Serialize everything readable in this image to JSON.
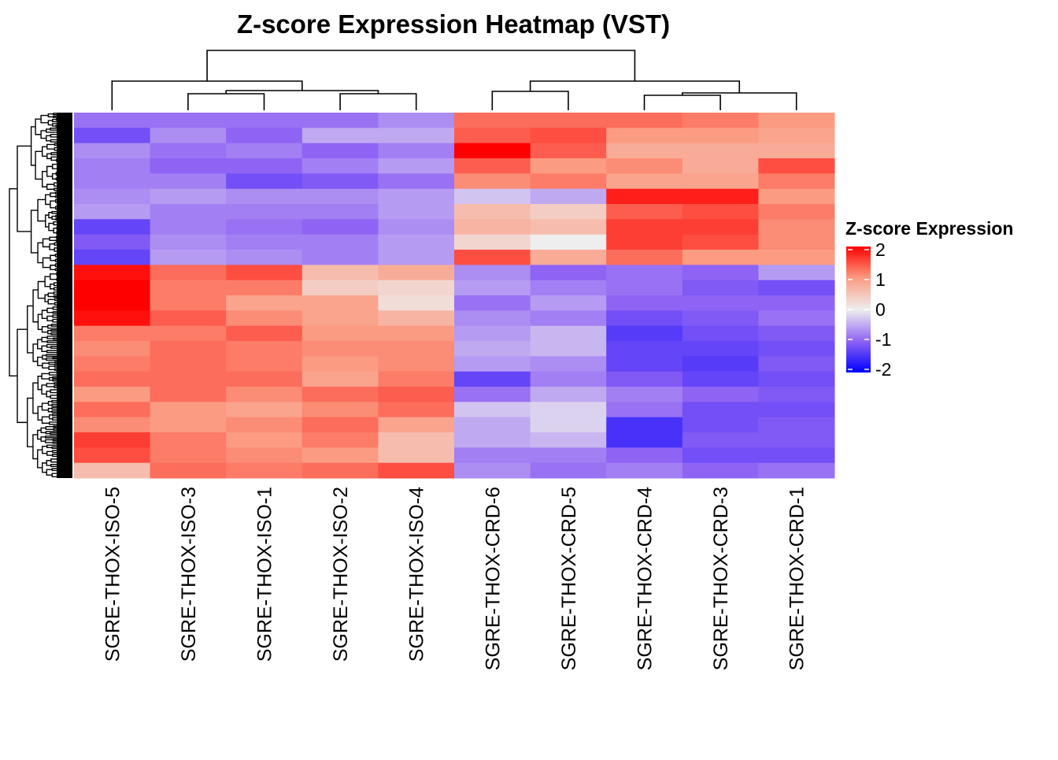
{
  "chart_data": {
    "type": "heatmap",
    "title": "Z-score Expression Heatmap (VST)",
    "columns": [
      "SGRE-THOX-ISO-5",
      "SGRE-THOX-ISO-3",
      "SGRE-THOX-ISO-1",
      "SGRE-THOX-ISO-2",
      "SGRE-THOX-ISO-4",
      "SGRE-THOX-CRD-6",
      "SGRE-THOX-CRD-5",
      "SGRE-THOX-CRD-4",
      "SGRE-THOX-CRD-3",
      "SGRE-THOX-CRD-1"
    ],
    "row_labels_shown": false,
    "row_dendrogram": true,
    "column_dendrogram": {
      "merges": [
        {
          "left": [
            "SGRE-THOX-ISO-3"
          ],
          "right": [
            "SGRE-THOX-ISO-1"
          ],
          "height": 21
        },
        {
          "left": [
            "SGRE-THOX-ISO-2"
          ],
          "right": [
            "SGRE-THOX-ISO-4"
          ],
          "height": 21
        },
        {
          "left": [
            "SGRE-THOX-ISO-3",
            "SGRE-THOX-ISO-1"
          ],
          "right": [
            "SGRE-THOX-ISO-2",
            "SGRE-THOX-ISO-4"
          ],
          "height": 25
        },
        {
          "left": [
            "SGRE-THOX-ISO-5"
          ],
          "right": [
            "SGRE-THOX-ISO-3",
            "SGRE-THOX-ISO-1",
            "SGRE-THOX-ISO-2",
            "SGRE-THOX-ISO-4"
          ],
          "height": 37
        },
        {
          "left": [
            "SGRE-THOX-CRD-6"
          ],
          "right": [
            "SGRE-THOX-CRD-5"
          ],
          "height": 24
        },
        {
          "left": [
            "SGRE-THOX-CRD-4"
          ],
          "right": [
            "SGRE-THOX-CRD-3"
          ],
          "height": 19
        },
        {
          "left": [
            "SGRE-THOX-CRD-4",
            "SGRE-THOX-CRD-3"
          ],
          "right": [
            "SGRE-THOX-CRD-1"
          ],
          "height": 22
        },
        {
          "left": [
            "SGRE-THOX-CRD-6",
            "SGRE-THOX-CRD-5"
          ],
          "right": [
            "SGRE-THOX-CRD-4",
            "SGRE-THOX-CRD-3",
            "SGRE-THOX-CRD-1"
          ],
          "height": 37
        },
        {
          "left": [
            "SGRE-THOX-ISO-5",
            "SGRE-THOX-ISO-3",
            "SGRE-THOX-ISO-1",
            "SGRE-THOX-ISO-2",
            "SGRE-THOX-ISO-4"
          ],
          "right": [
            "SGRE-THOX-CRD-6",
            "SGRE-THOX-CRD-5",
            "SGRE-THOX-CRD-4",
            "SGRE-THOX-CRD-3",
            "SGRE-THOX-CRD-1"
          ],
          "height": 76
        }
      ]
    },
    "values_by_column": [
      [
        -0.9,
        -1.2,
        -0.7,
        -0.8,
        -0.8,
        -0.7,
        -0.6,
        -1.3,
        -1.1,
        -1.3,
        1.9,
        2.0,
        2.0,
        1.9,
        1.2,
        1.1,
        1.2,
        1.3,
        1.0,
        1.3,
        1.1,
        1.6,
        1.5,
        0.6
      ],
      [
        -0.9,
        -0.7,
        -0.9,
        -1.0,
        -0.8,
        -0.6,
        -0.8,
        -0.8,
        -0.7,
        -0.6,
        1.3,
        1.2,
        1.2,
        1.4,
        1.2,
        1.3,
        1.3,
        1.3,
        1.3,
        1.0,
        1.0,
        1.2,
        1.2,
        1.3
      ],
      [
        -0.9,
        -1.0,
        -0.8,
        -1.0,
        -1.2,
        -0.7,
        -0.8,
        -0.9,
        -0.8,
        -0.7,
        1.5,
        1.2,
        0.9,
        1.1,
        1.4,
        1.2,
        1.2,
        1.3,
        1.1,
        0.9,
        1.1,
        1.0,
        1.1,
        1.2
      ],
      [
        -0.9,
        -0.5,
        -1.0,
        -0.8,
        -1.1,
        -0.7,
        -0.8,
        -1.0,
        -0.8,
        -0.8,
        0.6,
        0.4,
        0.9,
        0.9,
        1.0,
        1.1,
        1.0,
        0.9,
        1.3,
        1.1,
        1.3,
        1.2,
        1.0,
        1.3
      ],
      [
        -0.7,
        -0.5,
        -0.8,
        -0.6,
        -0.9,
        -0.6,
        -0.6,
        -0.7,
        -0.6,
        -0.6,
        0.8,
        0.3,
        0.2,
        0.7,
        1.0,
        1.1,
        1.1,
        1.2,
        1.4,
        1.3,
        0.9,
        0.6,
        0.6,
        1.5
      ],
      [
        1.3,
        1.4,
        2.0,
        1.4,
        1.1,
        -0.3,
        0.6,
        0.7,
        0.3,
        1.5,
        -0.7,
        -0.6,
        -0.9,
        -0.7,
        -0.6,
        -0.5,
        -0.6,
        -1.3,
        -0.9,
        -0.3,
        -0.5,
        -0.5,
        -0.8,
        -0.7
      ],
      [
        1.3,
        1.5,
        1.4,
        1.0,
        1.2,
        -0.5,
        0.4,
        0.6,
        0.0,
        0.8,
        -1.0,
        -0.8,
        -0.6,
        -0.8,
        -0.4,
        -0.4,
        -0.7,
        -0.8,
        -0.5,
        -0.2,
        -0.2,
        -0.4,
        -0.8,
        -0.9
      ],
      [
        1.3,
        1.0,
        0.8,
        1.1,
        0.9,
        1.8,
        1.4,
        1.6,
        1.6,
        1.3,
        -0.9,
        -0.9,
        -1.0,
        -1.2,
        -1.4,
        -1.3,
        -1.3,
        -1.1,
        -0.8,
        -0.9,
        -1.5,
        -1.5,
        -1.0,
        -0.8
      ],
      [
        1.2,
        1.0,
        0.8,
        0.8,
        0.9,
        1.8,
        1.5,
        1.6,
        1.5,
        1.0,
        -1.0,
        -1.1,
        -1.0,
        -1.1,
        -1.2,
        -1.3,
        -1.4,
        -1.3,
        -1.0,
        -1.2,
        -1.2,
        -1.1,
        -1.2,
        -1.0
      ],
      [
        1.0,
        0.9,
        0.8,
        1.5,
        1.2,
        1.0,
        1.2,
        1.1,
        1.1,
        1.0,
        -0.6,
        -1.2,
        -1.0,
        -0.9,
        -1.1,
        -1.2,
        -1.1,
        -1.2,
        -1.1,
        -1.2,
        -1.1,
        -1.1,
        -1.2,
        -0.9
      ]
    ],
    "color_scale": {
      "stops": [
        -2,
        -1,
        0,
        1,
        2
      ],
      "colors": [
        "#0000ff",
        "#8f63f4",
        "#eeeeee",
        "#fb9b82",
        "#ff0000"
      ],
      "range": [
        -2,
        2
      ]
    },
    "legend": {
      "title": "Z-score Expression",
      "ticks": [
        "2",
        "1",
        "0",
        "-1",
        "-2"
      ],
      "tick_values": [
        2,
        1,
        0,
        -1,
        -2
      ],
      "placement": "right"
    }
  }
}
